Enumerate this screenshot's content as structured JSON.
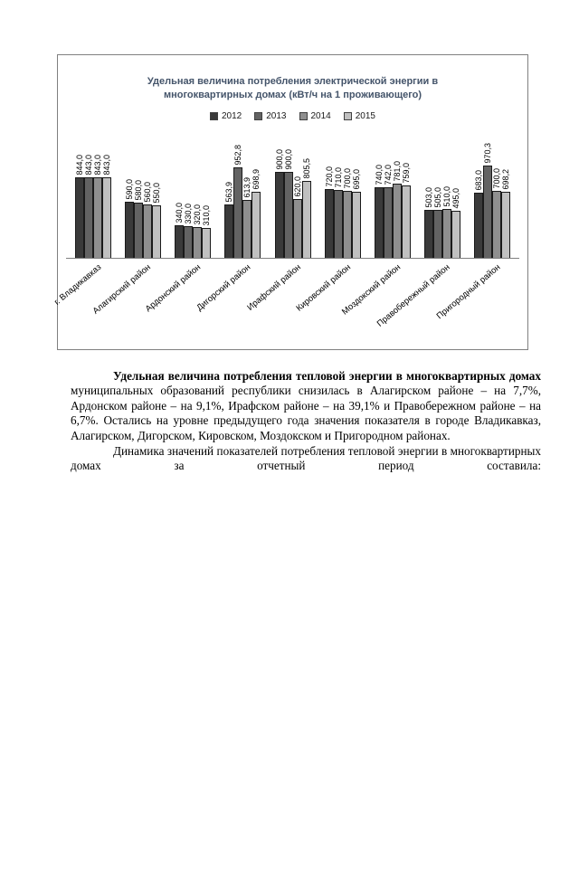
{
  "chart_data": {
    "type": "bar",
    "title": "Удельная величина потребления электрической энергии в многоквартирных домах (кВт/ч на 1 проживающего)",
    "categories": [
      "г. Владикавказ",
      "Алагирский район",
      "Ардонский район",
      "Дигорский район",
      "Ирафский район",
      "Кировский район",
      "Моздокский район",
      "Правобережный район",
      "Пригородный район"
    ],
    "series": [
      {
        "name": "2012",
        "color": "#3a3a3a",
        "values": [
          844.0,
          590.0,
          340.0,
          563.9,
          900.0,
          720.0,
          740.0,
          503.0,
          683.0
        ]
      },
      {
        "name": "2013",
        "color": "#636363",
        "values": [
          843.0,
          580.0,
          330.0,
          952.8,
          900.0,
          710.0,
          742.0,
          505.0,
          970.3
        ]
      },
      {
        "name": "2014",
        "color": "#8f8f8f",
        "values": [
          843.0,
          560.0,
          320.0,
          613.9,
          620.0,
          700.0,
          781.0,
          510.0,
          700.0
        ]
      },
      {
        "name": "2015",
        "color": "#c0c0c0",
        "values": [
          843.0,
          550.0,
          310.0,
          698.9,
          805.5,
          695.0,
          759.0,
          495.0,
          698.2
        ]
      }
    ],
    "ylim": [
      0,
      1000
    ],
    "grid": false,
    "legend_position": "top",
    "value_label_format": "one decimal, comma separator, rotated vertical"
  },
  "text": {
    "p1_bold": "Удельная величина потребления тепловой энергии в многоквартирных домах",
    "p1_rest": " муниципальных образований республики снизилась в Алагирском районе – на 7,7%, Ардонском районе – на 9,1%, Ирафском районе – на 39,1% и Правобережном районе – на 6,7%. Остались на уровне предыдущего года значения показателя в городе Владикавказ, Алагирском, Дигорском, Кировском, Моздокском и Пригородном районах.",
    "p2": "Динамика значений показателей потребления тепловой энергии в многоквартирных домах за отчетный период составила:"
  }
}
